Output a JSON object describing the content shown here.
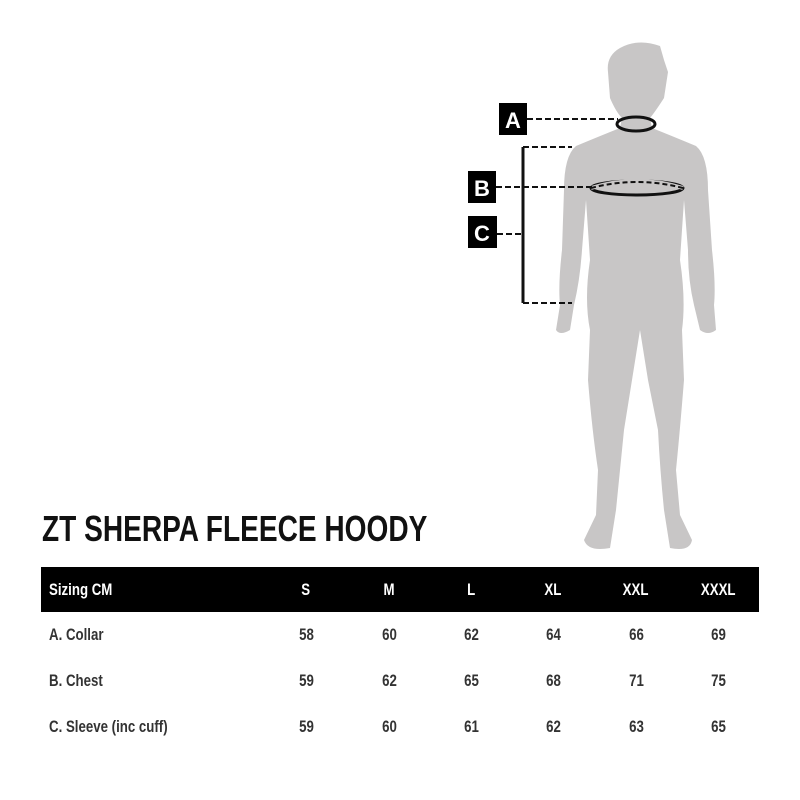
{
  "title": "ZT SHERPA FLEECE HOODY",
  "diagram": {
    "labels": [
      "A",
      "B",
      "C"
    ],
    "body_color": "#c8c6c6"
  },
  "table": {
    "headers": [
      "Sizing CM",
      "S",
      "M",
      "L",
      "XL",
      "XXL",
      "XXXL"
    ],
    "rows": [
      {
        "label": "A. Collar",
        "values": [
          "58",
          "60",
          "62",
          "64",
          "66",
          "69"
        ]
      },
      {
        "label": "B. Chest",
        "values": [
          "59",
          "62",
          "65",
          "68",
          "71",
          "75"
        ]
      },
      {
        "label": "C. Sleeve (inc cuff)",
        "values": [
          "59",
          "60",
          "61",
          "62",
          "63",
          "65"
        ]
      }
    ]
  }
}
